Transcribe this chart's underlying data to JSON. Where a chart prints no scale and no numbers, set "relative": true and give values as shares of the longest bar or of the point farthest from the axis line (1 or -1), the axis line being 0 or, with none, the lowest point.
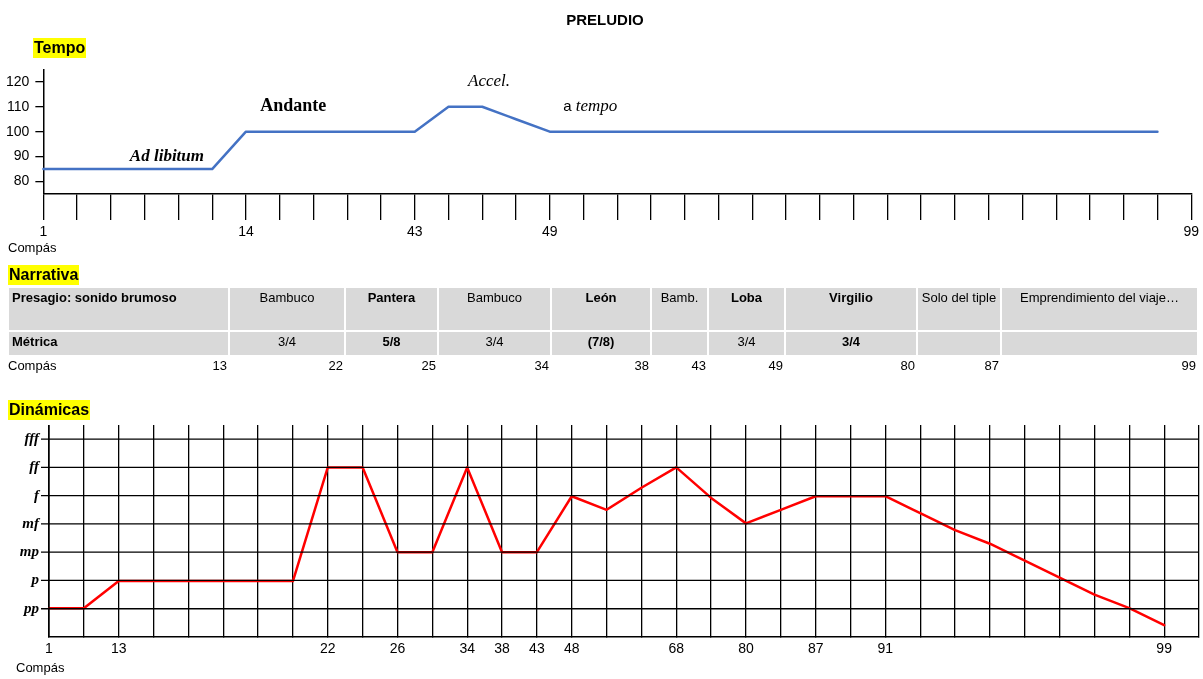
{
  "chart_data": [
    {
      "type": "line",
      "title": "PRELUDIO",
      "ylabel": "Tempo",
      "xlabel": "Compás",
      "categories": [
        "1",
        null,
        null,
        null,
        null,
        null,
        "14",
        null,
        null,
        null,
        null,
        "43",
        null,
        null,
        null,
        "49",
        null,
        null,
        null,
        null,
        null,
        null,
        null,
        null,
        null,
        null,
        null,
        null,
        null,
        null,
        null,
        null,
        null,
        null,
        "99"
      ],
      "series": [
        {
          "color": "#4472c4",
          "values": [
            85,
            85,
            85,
            85,
            85,
            85,
            100,
            100,
            100,
            100,
            100,
            100,
            110,
            110,
            105,
            100,
            100,
            100,
            100,
            100,
            100,
            100,
            100,
            100,
            100,
            100,
            100,
            100,
            100,
            100,
            100,
            100,
            100,
            100,
            null
          ]
        }
      ],
      "ylim": [
        75,
        125
      ],
      "yticks": [
        80,
        90,
        100,
        110,
        120
      ],
      "marker": "none",
      "annotations": [
        "Ad libitum",
        "Andante",
        "Accel.",
        "a tempo"
      ]
    },
    {
      "type": "other",
      "title": "Narrativa",
      "annotations": [
        "Presagio: sonido brumoso",
        "Bambuco",
        "Pantera",
        "Bambuco",
        "León",
        "Bamb.",
        "Loba",
        "Virgilio",
        "Solo del tiple",
        "Emprendimiento del viaje…",
        "Métrica",
        "3/4",
        "5/8",
        "3/4",
        "(7/8)",
        "3/4",
        "3/4",
        "Compás",
        "13",
        "22",
        "25",
        "34",
        "38",
        "43",
        "49",
        "80",
        "87",
        "99"
      ]
    },
    {
      "type": "line",
      "ylabel": "Dinámicas",
      "xlabel": "Compás",
      "grid": true,
      "categories": [
        "1",
        null,
        "13",
        null,
        null,
        null,
        null,
        null,
        "22",
        null,
        "26",
        null,
        "34",
        "38",
        "43",
        "48",
        null,
        null,
        "68",
        null,
        "80",
        null,
        "87",
        null,
        "91",
        null,
        null,
        null,
        null,
        null,
        null,
        null,
        "99",
        null
      ],
      "series": [
        {
          "color": "#ff0000",
          "values": [
            0.17,
            0.17,
            0.33,
            0.33,
            0.33,
            0.33,
            0.33,
            0.33,
            1,
            1,
            0.5,
            0.5,
            1,
            0.5,
            0.5,
            0.83,
            0.75,
            0.88,
            1,
            0.82,
            0.67,
            0.75,
            0.83,
            0.83,
            0.83,
            0.73,
            0.63,
            0.55,
            0.45,
            0.35,
            0.25,
            0.17,
            0.07,
            null
          ]
        }
      ],
      "relative": true,
      "annotations": [
        "pp",
        "p",
        "mp",
        "mf",
        "f",
        "ff",
        "fff"
      ],
      "marker": "none"
    }
  ]
}
